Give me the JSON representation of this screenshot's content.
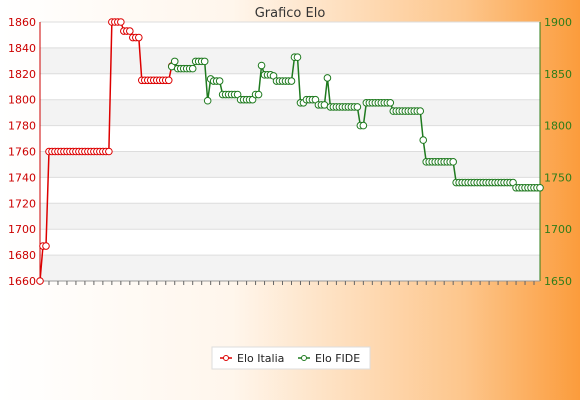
{
  "chart_data": {
    "type": "line",
    "title": "Grafico Elo",
    "xlabel": "",
    "ylabel": "",
    "left_axis": {
      "range": [
        1660,
        1860
      ],
      "ticks": [
        1660,
        1680,
        1700,
        1720,
        1740,
        1760,
        1780,
        1800,
        1820,
        1840,
        1860
      ],
      "color": "#cc0000"
    },
    "right_axis": {
      "range": [
        1650,
        1900
      ],
      "ticks": [
        1650,
        1700,
        1750,
        1800,
        1850,
        1900
      ],
      "color": "#2e7d1a"
    },
    "grid": true,
    "legend_position": "bottom",
    "x_count": 168,
    "series": [
      {
        "name": "Elo Italia",
        "axis": "left",
        "color": "#dd0000",
        "marker": "circle",
        "points": [
          [
            0,
            1660
          ],
          [
            1,
            1687
          ],
          [
            2,
            1687
          ],
          [
            3,
            1760
          ],
          [
            4,
            1760
          ],
          [
            5,
            1760
          ],
          [
            6,
            1760
          ],
          [
            7,
            1760
          ],
          [
            8,
            1760
          ],
          [
            9,
            1760
          ],
          [
            10,
            1760
          ],
          [
            11,
            1760
          ],
          [
            12,
            1760
          ],
          [
            13,
            1760
          ],
          [
            14,
            1760
          ],
          [
            15,
            1760
          ],
          [
            16,
            1760
          ],
          [
            17,
            1760
          ],
          [
            18,
            1760
          ],
          [
            19,
            1760
          ],
          [
            20,
            1760
          ],
          [
            21,
            1760
          ],
          [
            22,
            1760
          ],
          [
            23,
            1760
          ],
          [
            24,
            1860
          ],
          [
            25,
            1860
          ],
          [
            26,
            1860
          ],
          [
            27,
            1860
          ],
          [
            28,
            1853
          ],
          [
            29,
            1853
          ],
          [
            30,
            1853
          ],
          [
            31,
            1848
          ],
          [
            32,
            1848
          ],
          [
            33,
            1848
          ],
          [
            34,
            1815
          ],
          [
            35,
            1815
          ],
          [
            36,
            1815
          ],
          [
            37,
            1815
          ],
          [
            38,
            1815
          ],
          [
            39,
            1815
          ],
          [
            40,
            1815
          ],
          [
            41,
            1815
          ],
          [
            42,
            1815
          ],
          [
            43,
            1815
          ],
          [
            44,
            1826
          ]
        ]
      },
      {
        "name": "Elo FIDE",
        "axis": "right",
        "color": "#1f7a1f",
        "marker": "circle",
        "points": [
          [
            44,
            1857
          ],
          [
            45,
            1862
          ],
          [
            46,
            1855
          ],
          [
            47,
            1855
          ],
          [
            48,
            1855
          ],
          [
            49,
            1855
          ],
          [
            50,
            1855
          ],
          [
            51,
            1855
          ],
          [
            52,
            1862
          ],
          [
            53,
            1862
          ],
          [
            54,
            1862
          ],
          [
            55,
            1862
          ],
          [
            56,
            1824
          ],
          [
            57,
            1845
          ],
          [
            58,
            1843
          ],
          [
            59,
            1843
          ],
          [
            60,
            1843
          ],
          [
            61,
            1830
          ],
          [
            62,
            1830
          ],
          [
            63,
            1830
          ],
          [
            64,
            1830
          ],
          [
            65,
            1830
          ],
          [
            66,
            1830
          ],
          [
            67,
            1825
          ],
          [
            68,
            1825
          ],
          [
            69,
            1825
          ],
          [
            70,
            1825
          ],
          [
            71,
            1825
          ],
          [
            72,
            1830
          ],
          [
            73,
            1830
          ],
          [
            74,
            1858
          ],
          [
            75,
            1849
          ],
          [
            76,
            1849
          ],
          [
            77,
            1849
          ],
          [
            78,
            1848
          ],
          [
            79,
            1843
          ],
          [
            80,
            1843
          ],
          [
            81,
            1843
          ],
          [
            82,
            1843
          ],
          [
            83,
            1843
          ],
          [
            84,
            1843
          ],
          [
            85,
            1866
          ],
          [
            86,
            1866
          ],
          [
            87,
            1822
          ],
          [
            88,
            1822
          ],
          [
            89,
            1825
          ],
          [
            90,
            1825
          ],
          [
            91,
            1825
          ],
          [
            92,
            1825
          ],
          [
            93,
            1820
          ],
          [
            94,
            1820
          ],
          [
            95,
            1820
          ],
          [
            96,
            1846
          ],
          [
            97,
            1818
          ],
          [
            98,
            1818
          ],
          [
            99,
            1818
          ],
          [
            100,
            1818
          ],
          [
            101,
            1818
          ],
          [
            102,
            1818
          ],
          [
            103,
            1818
          ],
          [
            104,
            1818
          ],
          [
            105,
            1818
          ],
          [
            106,
            1818
          ],
          [
            107,
            1800
          ],
          [
            108,
            1800
          ],
          [
            109,
            1822
          ],
          [
            110,
            1822
          ],
          [
            111,
            1822
          ],
          [
            112,
            1822
          ],
          [
            113,
            1822
          ],
          [
            114,
            1822
          ],
          [
            115,
            1822
          ],
          [
            116,
            1822
          ],
          [
            117,
            1822
          ],
          [
            118,
            1814
          ],
          [
            119,
            1814
          ],
          [
            120,
            1814
          ],
          [
            121,
            1814
          ],
          [
            122,
            1814
          ],
          [
            123,
            1814
          ],
          [
            124,
            1814
          ],
          [
            125,
            1814
          ],
          [
            126,
            1814
          ],
          [
            127,
            1814
          ],
          [
            128,
            1786
          ],
          [
            129,
            1765
          ],
          [
            130,
            1765
          ],
          [
            131,
            1765
          ],
          [
            132,
            1765
          ],
          [
            133,
            1765
          ],
          [
            134,
            1765
          ],
          [
            135,
            1765
          ],
          [
            136,
            1765
          ],
          [
            137,
            1765
          ],
          [
            138,
            1765
          ],
          [
            139,
            1745
          ],
          [
            140,
            1745
          ],
          [
            141,
            1745
          ],
          [
            142,
            1745
          ],
          [
            143,
            1745
          ],
          [
            144,
            1745
          ],
          [
            145,
            1745
          ],
          [
            146,
            1745
          ],
          [
            147,
            1745
          ],
          [
            148,
            1745
          ],
          [
            149,
            1745
          ],
          [
            150,
            1745
          ],
          [
            151,
            1745
          ],
          [
            152,
            1745
          ],
          [
            153,
            1745
          ],
          [
            154,
            1745
          ],
          [
            155,
            1745
          ],
          [
            156,
            1745
          ],
          [
            157,
            1745
          ],
          [
            158,
            1745
          ],
          [
            159,
            1740
          ],
          [
            160,
            1740
          ],
          [
            161,
            1740
          ],
          [
            162,
            1740
          ],
          [
            163,
            1740
          ],
          [
            164,
            1740
          ],
          [
            165,
            1740
          ],
          [
            166,
            1740
          ],
          [
            167,
            1740
          ]
        ]
      }
    ]
  }
}
